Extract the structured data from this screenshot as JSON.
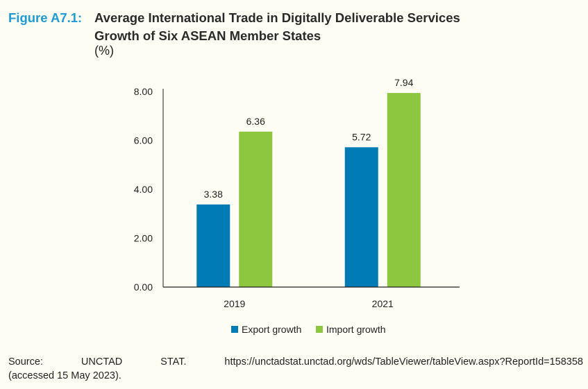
{
  "figure_label": "Figure A7.1:",
  "title_line1": "Average International Trade in Digitally Deliverable Services",
  "title_line2": "Growth of Six ASEAN Member States",
  "unit": "(%)",
  "source": {
    "w1": "Source:",
    "w2": "UNCTAD",
    "w3": "STAT.",
    "w4": "https://unctadstat.unctad.org/wds/TableViewer/tableView.aspx?ReportId=158358",
    "line2": "(accessed 15 May 2023)."
  },
  "chart_data": {
    "type": "bar",
    "categories": [
      "2019",
      "2021"
    ],
    "series": [
      {
        "name": "Export growth",
        "values": [
          3.38,
          5.72
        ],
        "color": "#007bb6"
      },
      {
        "name": "Import growth",
        "values": [
          6.36,
          7.94
        ],
        "color": "#8dc63f"
      }
    ],
    "data_labels": [
      [
        "3.38",
        "5.72"
      ],
      [
        "6.36",
        "7.94"
      ]
    ],
    "yticks": [
      "0.00",
      "2.00",
      "4.00",
      "6.00",
      "8.00"
    ],
    "ylim": [
      0,
      8
    ],
    "grid": false,
    "legend": "bottom"
  }
}
